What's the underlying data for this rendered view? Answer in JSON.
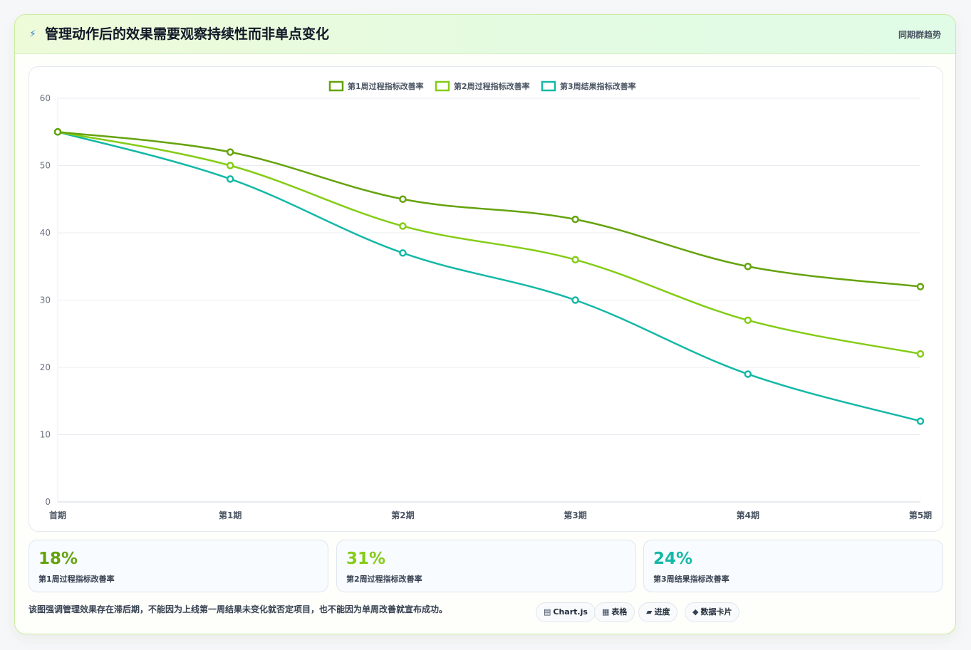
{
  "header": {
    "title_icon": "lightning-icon",
    "title": "管理动作后的效果需要观察持续性而非单点变化",
    "right_label": "同期群趋势"
  },
  "chart_data": {
    "type": "line",
    "categories": [
      "首期",
      "第1期",
      "第2期",
      "第3期",
      "第4期",
      "第5期"
    ],
    "series": [
      {
        "name": "第1周过程指标改善率",
        "color": "#65a30d",
        "values": [
          55,
          52,
          45,
          42,
          35,
          32
        ]
      },
      {
        "name": "第2周过程指标改善率",
        "color": "#84cc16",
        "values": [
          55,
          50,
          41,
          36,
          27,
          22
        ]
      },
      {
        "name": "第3周结果指标改善率",
        "color": "#14b8a6",
        "values": [
          55,
          48,
          37,
          30,
          19,
          12
        ]
      }
    ],
    "ylim": [
      0,
      60
    ],
    "yticks": [
      0,
      10,
      20,
      30,
      40,
      50,
      60
    ],
    "grid": true,
    "legend": "top-center"
  },
  "kpis": [
    {
      "value": "18%",
      "label": "第1周过程指标改善率",
      "color": "#65a30d"
    },
    {
      "value": "31%",
      "label": "第2周过程指标改善率",
      "color": "#84cc16"
    },
    {
      "value": "24%",
      "label": "第3周结果指标改善率",
      "color": "#14b8a6"
    }
  ],
  "footnote": "该图强调管理效果存在滞后期，不能因为上线第一周结果未变化就否定项目，也不能因为单周改善就宣布成功。",
  "tags": [
    {
      "icon": "▤",
      "icon_name": "chart-icon",
      "label": "Chart.js"
    },
    {
      "icon": "▦",
      "icon_name": "table-icon",
      "label": "表格"
    },
    {
      "icon": "▰",
      "icon_name": "progress-icon",
      "label": "进度"
    },
    {
      "icon": "◆",
      "icon_name": "data-card-icon",
      "label": "数据卡片"
    }
  ]
}
